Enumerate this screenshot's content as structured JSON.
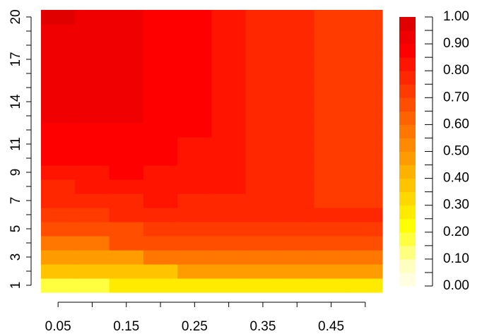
{
  "chart_data": {
    "type": "heatmap",
    "title": "",
    "xlabel": "",
    "ylabel": "",
    "x": [
      0.05,
      0.1,
      0.15,
      0.2,
      0.25,
      0.3,
      0.35,
      0.4,
      0.45,
      0.5
    ],
    "y": [
      1,
      2,
      3,
      4,
      5,
      6,
      7,
      8,
      9,
      10,
      11,
      12,
      13,
      14,
      15,
      16,
      17,
      18,
      19,
      20
    ],
    "x_tick_labels": [
      "0.05",
      "0.15",
      "0.25",
      "0.35",
      "0.45"
    ],
    "y_tick_labels": [
      "1",
      "3",
      "5",
      "7",
      "9",
      "11",
      "14",
      "17",
      "20"
    ],
    "y_tick_values": [
      1,
      3,
      5,
      7,
      9,
      11,
      14,
      17,
      20
    ],
    "x_tick_values": [
      0.05,
      0.15,
      0.25,
      0.35,
      0.45
    ],
    "color_scale": {
      "range": [
        0,
        1
      ],
      "breaks": 20,
      "tick_labels": [
        "0.00",
        "0.10",
        "0.20",
        "0.30",
        "0.40",
        "0.50",
        "0.60",
        "0.70",
        "0.80",
        "0.90",
        "1.00"
      ],
      "tick_values": [
        0.0,
        0.1,
        0.2,
        0.3,
        0.4,
        0.5,
        0.6,
        0.7,
        0.8,
        0.9,
        1.0
      ],
      "colors": [
        "#FFFFE0",
        "#FFFFBF",
        "#FFFF80",
        "#FFFF40",
        "#FFFF00",
        "#FFEB00",
        "#FFD800",
        "#FFC400",
        "#FFB100",
        "#FF9D00",
        "#FF8900",
        "#FF7600",
        "#FF6200",
        "#FF4E00",
        "#FF3B00",
        "#FF2700",
        "#FF1400",
        "#FF0000",
        "#F00000",
        "#E00000"
      ]
    },
    "values": [
      [
        0.15,
        0.15,
        0.25,
        0.25,
        0.25,
        0.25,
        0.25,
        0.25,
        0.25,
        0.25
      ],
      [
        0.35,
        0.35,
        0.35,
        0.35,
        0.45,
        0.45,
        0.45,
        0.45,
        0.45,
        0.45
      ],
      [
        0.45,
        0.45,
        0.45,
        0.55,
        0.55,
        0.55,
        0.55,
        0.55,
        0.55,
        0.55
      ],
      [
        0.55,
        0.55,
        0.65,
        0.65,
        0.65,
        0.65,
        0.65,
        0.65,
        0.65,
        0.65
      ],
      [
        0.65,
        0.65,
        0.65,
        0.7,
        0.7,
        0.7,
        0.7,
        0.7,
        0.7,
        0.7
      ],
      [
        0.7,
        0.7,
        0.75,
        0.75,
        0.75,
        0.75,
        0.75,
        0.75,
        0.75,
        0.75
      ],
      [
        0.75,
        0.75,
        0.75,
        0.8,
        0.75,
        0.75,
        0.75,
        0.75,
        0.7,
        0.7
      ],
      [
        0.75,
        0.8,
        0.8,
        0.8,
        0.8,
        0.8,
        0.75,
        0.75,
        0.7,
        0.7
      ],
      [
        0.8,
        0.8,
        0.85,
        0.8,
        0.8,
        0.8,
        0.75,
        0.75,
        0.7,
        0.7
      ],
      [
        0.85,
        0.85,
        0.85,
        0.85,
        0.8,
        0.8,
        0.75,
        0.75,
        0.7,
        0.7
      ],
      [
        0.85,
        0.85,
        0.85,
        0.85,
        0.8,
        0.8,
        0.75,
        0.75,
        0.7,
        0.7
      ],
      [
        0.85,
        0.85,
        0.85,
        0.85,
        0.85,
        0.8,
        0.75,
        0.75,
        0.7,
        0.7
      ],
      [
        0.9,
        0.9,
        0.9,
        0.85,
        0.85,
        0.8,
        0.75,
        0.75,
        0.7,
        0.7
      ],
      [
        0.9,
        0.9,
        0.9,
        0.85,
        0.85,
        0.8,
        0.75,
        0.75,
        0.7,
        0.7
      ],
      [
        0.9,
        0.9,
        0.9,
        0.85,
        0.85,
        0.8,
        0.75,
        0.75,
        0.7,
        0.7
      ],
      [
        0.9,
        0.9,
        0.9,
        0.85,
        0.85,
        0.8,
        0.75,
        0.75,
        0.7,
        0.7
      ],
      [
        0.9,
        0.9,
        0.9,
        0.85,
        0.85,
        0.8,
        0.75,
        0.75,
        0.7,
        0.7
      ],
      [
        0.9,
        0.9,
        0.9,
        0.85,
        0.85,
        0.8,
        0.75,
        0.75,
        0.7,
        0.7
      ],
      [
        0.9,
        0.9,
        0.9,
        0.85,
        0.85,
        0.8,
        0.75,
        0.75,
        0.7,
        0.7
      ],
      [
        0.95,
        0.9,
        0.9,
        0.85,
        0.85,
        0.8,
        0.75,
        0.75,
        0.7,
        0.7
      ]
    ]
  }
}
